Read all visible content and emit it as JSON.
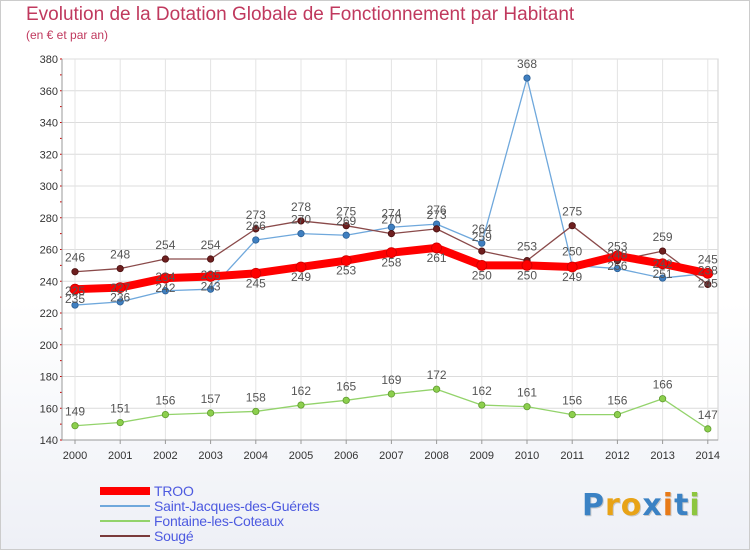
{
  "title": "Evolution de la Dotation Globale de Fonctionnement par Habitant",
  "subtitle": "(en € et par an)",
  "logo": {
    "text": "Proxiti",
    "letter_colors": [
      "#3b82c4",
      "#e8a317",
      "#e8a317",
      "#3b82c4",
      "#e87a17",
      "#3b82c4",
      "#8dc63f"
    ]
  },
  "chart_data": {
    "type": "line",
    "title": "Evolution de la Dotation Globale de Fonctionnement par Habitant",
    "subtitle": "(en € et par an)",
    "xlabel": "",
    "ylabel": "",
    "ylim": [
      140,
      380
    ],
    "yticks": [
      140,
      160,
      180,
      200,
      220,
      240,
      260,
      280,
      300,
      320,
      340,
      360,
      380
    ],
    "categories": [
      "2000",
      "2001",
      "2002",
      "2003",
      "2004",
      "2005",
      "2006",
      "2007",
      "2008",
      "2009",
      "2010",
      "2011",
      "2012",
      "2013",
      "2014"
    ],
    "grid": true,
    "legend": "bottom-left",
    "series": [
      {
        "name": "TROO",
        "color": "#ff0000",
        "values": [
          235,
          236,
          242,
          243,
          245,
          249,
          253,
          258,
          261,
          250,
          250,
          249,
          256,
          251,
          245
        ]
      },
      {
        "name": "Saint-Jacques-des-Guérets",
        "color": "#6fa8dc",
        "values": [
          225,
          227,
          234,
          235,
          266,
          270,
          269,
          274,
          276,
          264,
          368,
          250,
          248,
          242,
          245
        ]
      },
      {
        "name": "Fontaine-les-Coteaux",
        "color": "#93d36b",
        "values": [
          149,
          151,
          156,
          157,
          158,
          162,
          165,
          169,
          172,
          162,
          161,
          156,
          156,
          166,
          147
        ]
      },
      {
        "name": "Sougé",
        "color": "#7a3b3b",
        "values": [
          246,
          248,
          254,
          254,
          273,
          278,
          275,
          270,
          273,
          259,
          253,
          275,
          253,
          259,
          238
        ]
      }
    ]
  }
}
